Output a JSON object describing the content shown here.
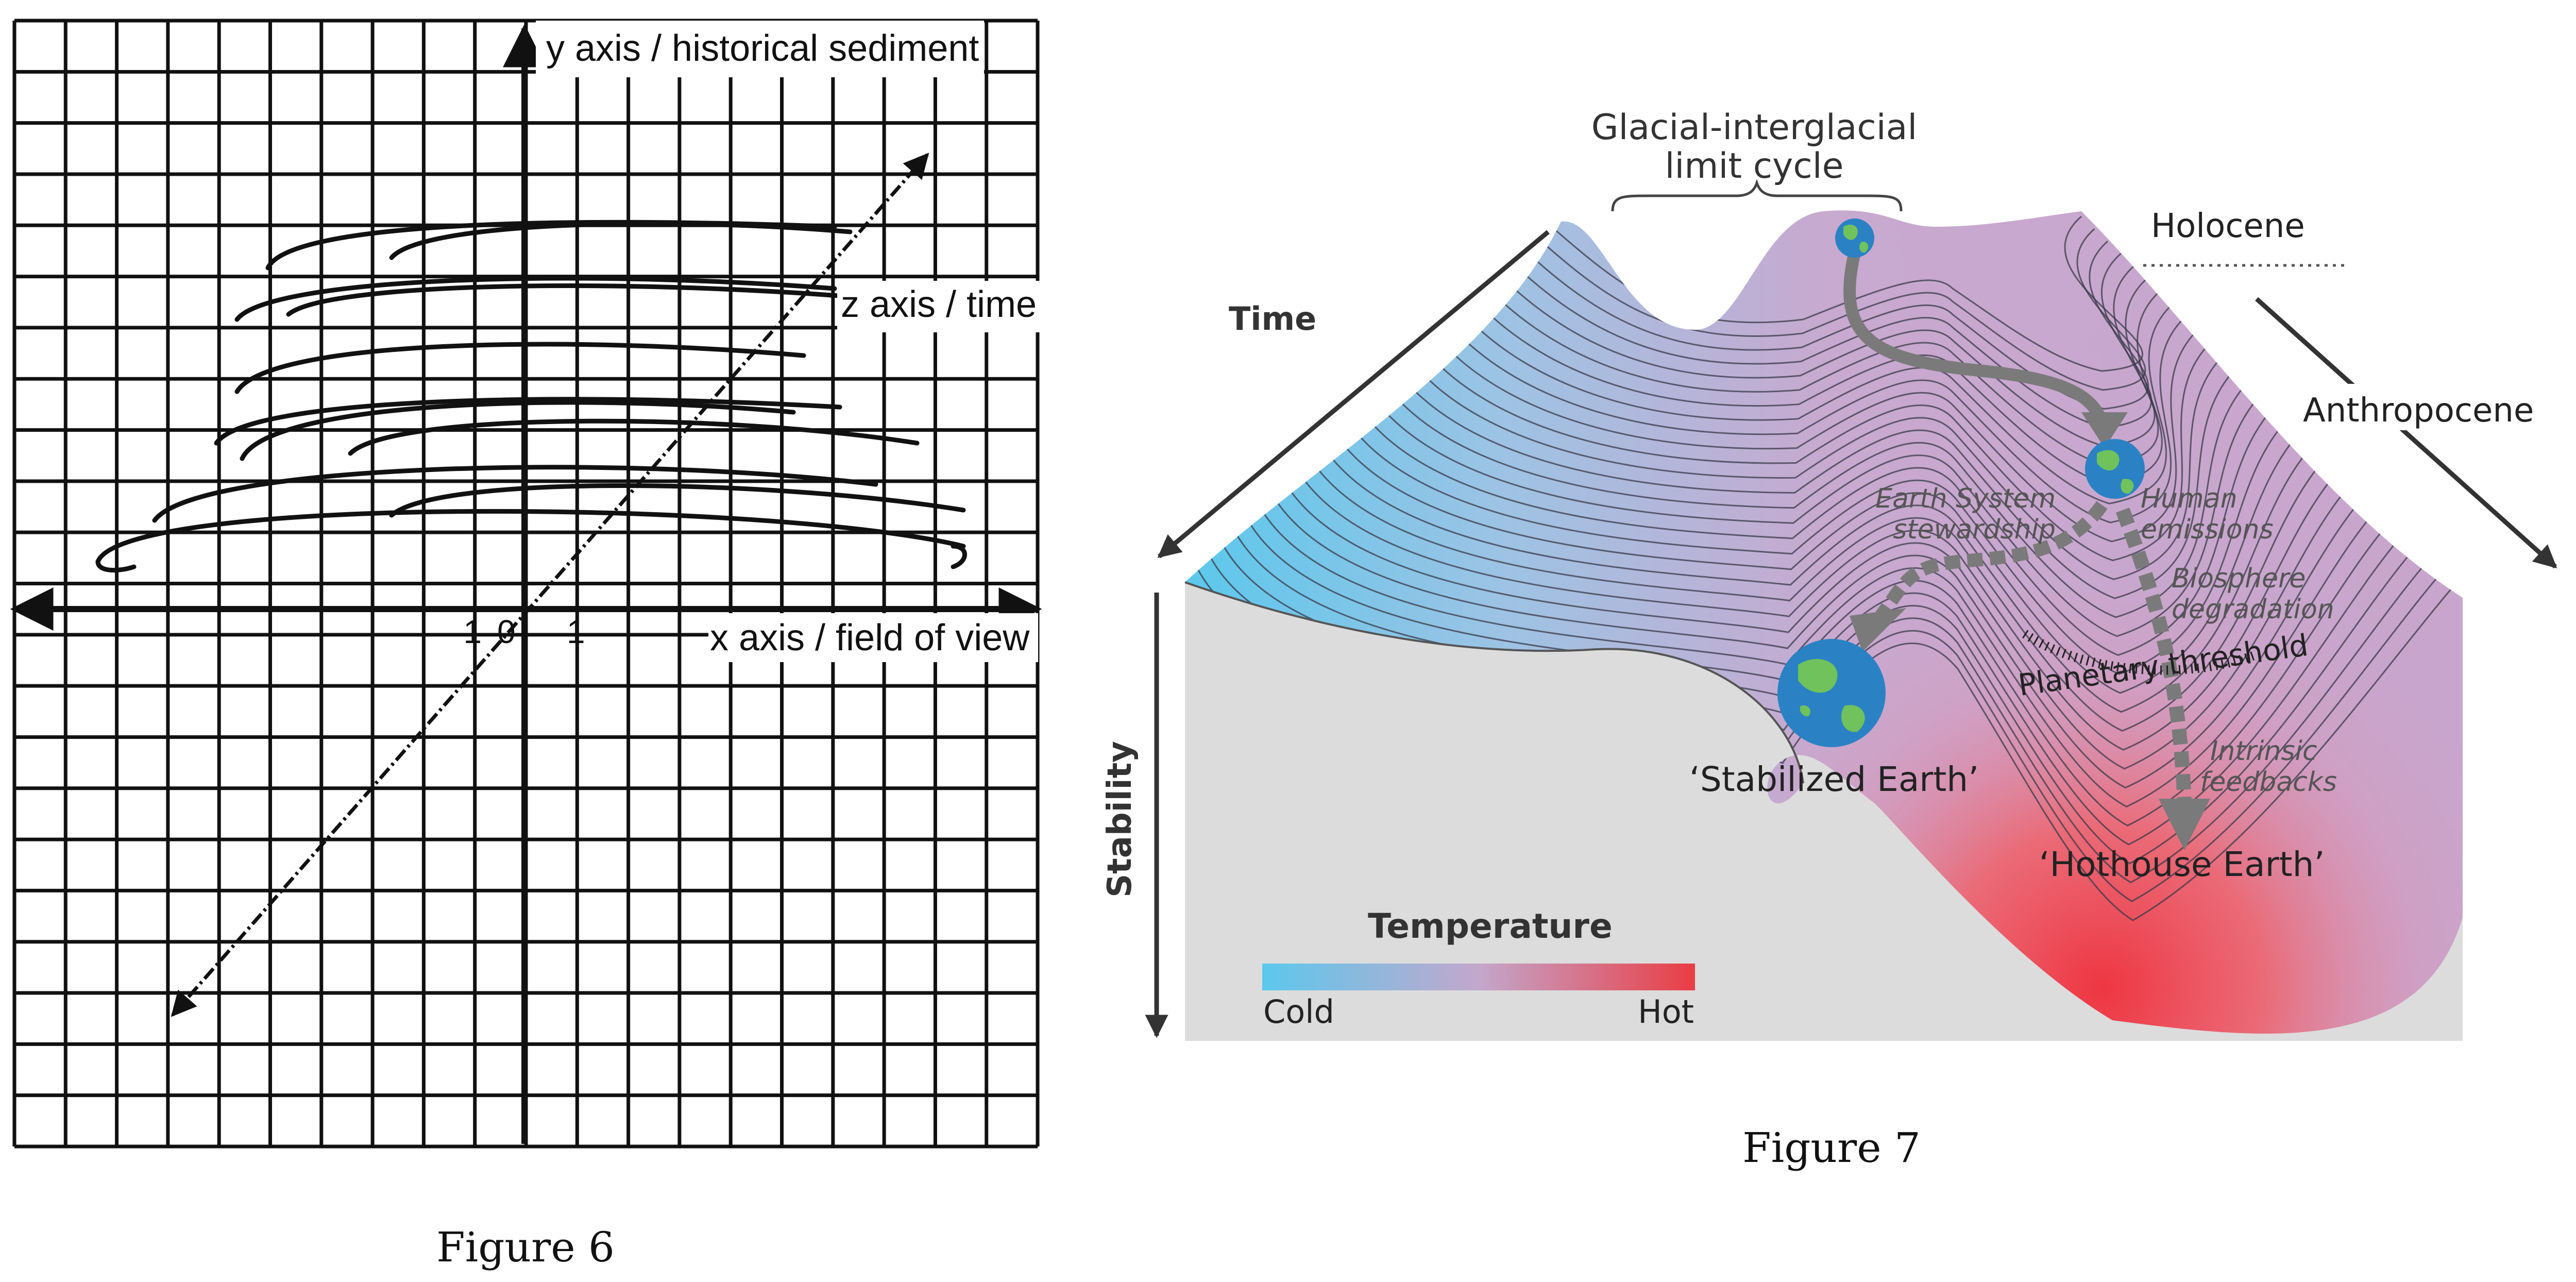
{
  "figure6": {
    "caption": "Figure 6",
    "y_axis_label": "y axis / historical sediment",
    "z_axis_label": "z axis / time",
    "x_axis_label": "x axis / field of view",
    "ticks": {
      "neg": "-1",
      "zero": "0",
      "pos": "1"
    }
  },
  "figure7": {
    "caption": "Figure 7",
    "cycle_label_line1": "Glacial-interglacial",
    "cycle_label_line2": "limit cycle",
    "holocene": "Holocene",
    "anthropocene": "Anthropocene",
    "time": "Time",
    "stability": "Stability",
    "stewardship_line1": "Earth System",
    "stewardship_line2": "stewardship",
    "human_line1": "Human",
    "human_line2": "emissions",
    "biosphere_line1": "Biosphere",
    "biosphere_line2": "degradation",
    "threshold": "Planetary threshold",
    "feedbacks_line1": "Intrinsic",
    "feedbacks_line2": "feedbacks",
    "stabilized": "‘Stabilized Earth’",
    "hothouse": "‘Hothouse Earth’",
    "legend": {
      "title": "Temperature",
      "cold": "Cold",
      "hot": "Hot"
    },
    "colors": {
      "cold": "#5bc8ec",
      "mid": "#c3a7cc",
      "hot": "#ea3d44",
      "arrow": "#777777",
      "base": "#dcdcdc",
      "ocean": "#2a82c4",
      "land": "#6fc25c"
    }
  }
}
